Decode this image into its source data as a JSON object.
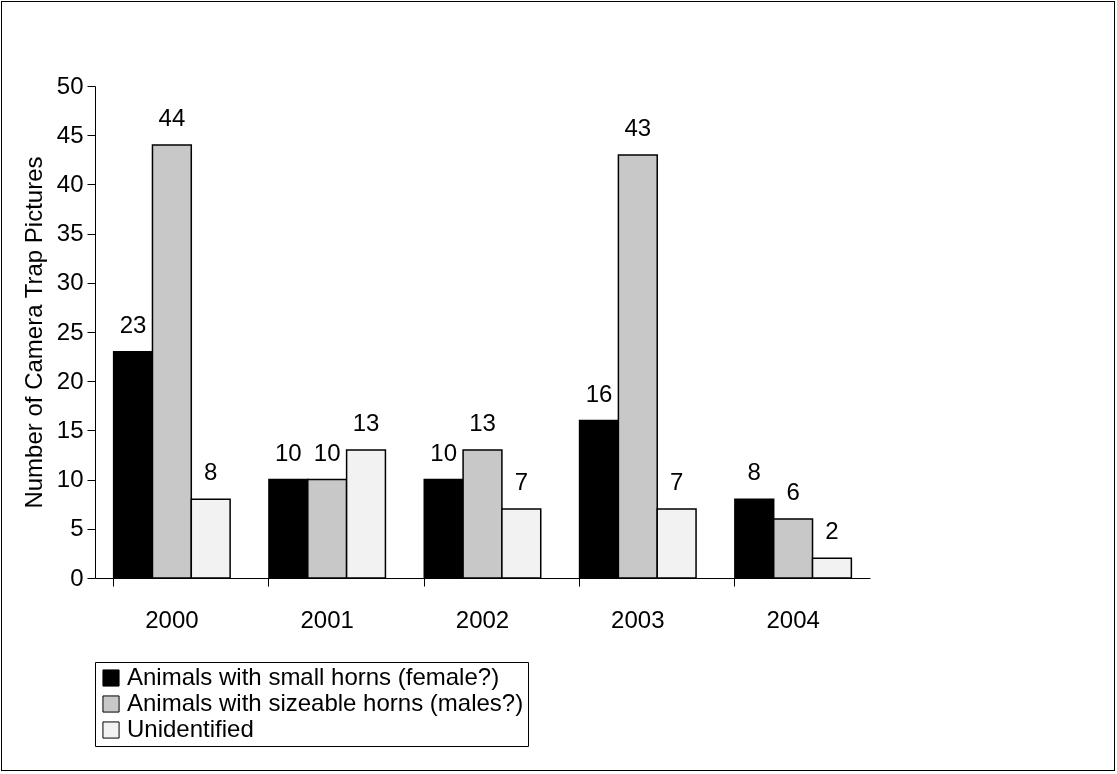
{
  "chart_data": {
    "type": "bar",
    "ylabel": "Number of Camera Trap Pictures",
    "categories": [
      "2000",
      "2001",
      "2002",
      "2003",
      "2004"
    ],
    "series": [
      {
        "name": "Animals with small horns (female?)",
        "color": "#000000",
        "values": [
          23,
          10,
          10,
          16,
          8
        ]
      },
      {
        "name": "Animals with sizeable horns (males?)",
        "color": "#c8c8c8",
        "values": [
          44,
          10,
          13,
          43,
          6
        ]
      },
      {
        "name": "Unidentified",
        "color": "#f2f2f2",
        "values": [
          8,
          13,
          7,
          7,
          2
        ]
      }
    ],
    "ylim": [
      0,
      50
    ],
    "yticks": [
      0,
      5,
      10,
      15,
      20,
      25,
      30,
      35,
      40,
      45,
      50
    ],
    "grid": false,
    "legend": "bottom",
    "data_labels": true
  }
}
